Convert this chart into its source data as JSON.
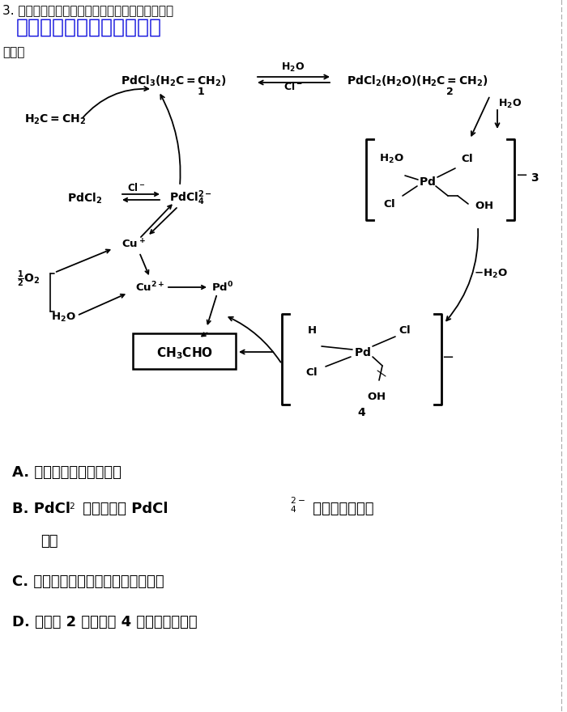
{
  "bg_color": "#ffffff",
  "text_color": "#000000",
  "blue_color": "#1010DD",
  "figsize": [
    7.0,
    8.8
  ],
  "dpi": 100,
  "header1": "3. 制备乙醛的一种反应机理如图所示，下列叙述错",
  "header2": "微信公众号关注：趋找答案",
  "header3": "误的是",
  "optA": "A. 反应过程涉及氧化反应",
  "optB1": "B. PdCl",
  "optB2": "需要转化为 PdCl",
  "optB3": "才能催化反应的",
  "optB4": "进行",
  "optC": "C. 可以用乙烯和氧气为原料制备乙醛",
  "optD": "D. 化合物 2 和化合物 4 互为同分异构体"
}
